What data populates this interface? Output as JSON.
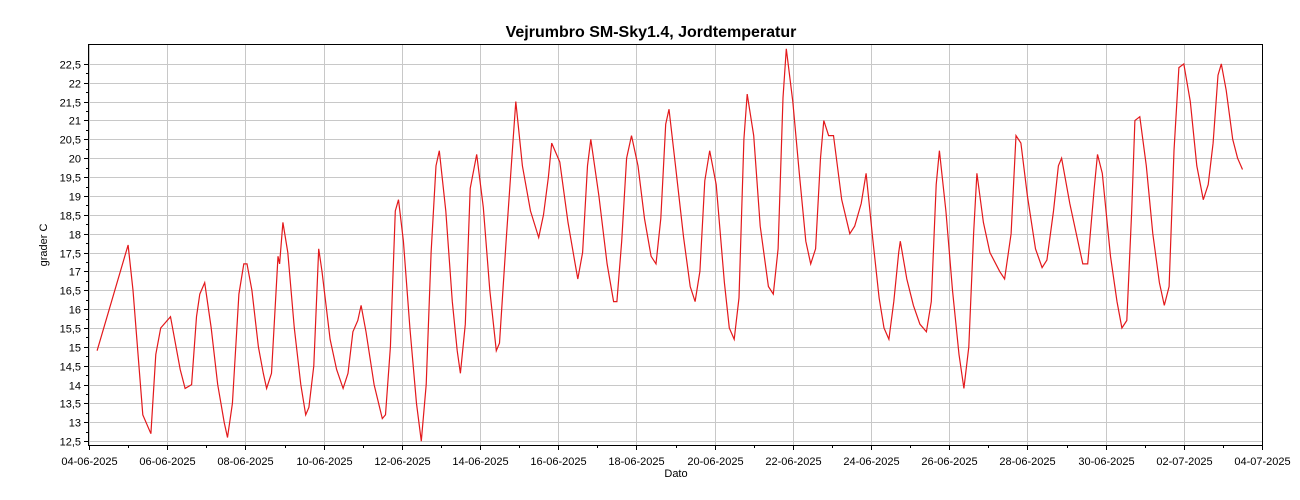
{
  "chart_data": {
    "type": "line",
    "title": "Vejrumbro SM-Sky1.4, Jordtemperatur",
    "xlabel": "Dato",
    "ylabel": "grader C",
    "xlim": [
      "04-06-2025",
      "04-07-2025"
    ],
    "ylim": [
      12.4,
      23.0
    ],
    "x_ticks": [
      "04-06-2025",
      "06-06-2025",
      "08-06-2025",
      "10-06-2025",
      "12-06-2025",
      "14-06-2025",
      "16-06-2025",
      "18-06-2025",
      "20-06-2025",
      "22-06-2025",
      "24-06-2025",
      "26-06-2025",
      "28-06-2025",
      "30-06-2025",
      "02-07-2025",
      "04-07-2025"
    ],
    "y_ticks": [
      "12,5",
      "13",
      "13,5",
      "14",
      "14,5",
      "15",
      "15,5",
      "16",
      "16,5",
      "17",
      "17,5",
      "18",
      "18,5",
      "19",
      "19,5",
      "20",
      "20,5",
      "21",
      "21,5",
      "22",
      "22,5"
    ],
    "grid": true,
    "series": [
      {
        "color": "#e3191c",
        "points": [
          [
            "04-06-2025 05:00",
            14.9
          ],
          [
            "05-06-2025 00:00",
            17.7
          ],
          [
            "05-06-2025 03:00",
            16.5
          ],
          [
            "05-06-2025 09:00",
            13.2
          ],
          [
            "05-06-2025 14:00",
            12.7
          ],
          [
            "05-06-2025 17:00",
            14.8
          ],
          [
            "05-06-2025 20:00",
            15.5
          ],
          [
            "06-06-2025 02:00",
            15.8
          ],
          [
            "06-06-2025 08:00",
            14.4
          ],
          [
            "06-06-2025 11:00",
            13.9
          ],
          [
            "06-06-2025 15:00",
            14.0
          ],
          [
            "06-06-2025 18:00",
            15.8
          ],
          [
            "06-06-2025 20:00",
            16.4
          ],
          [
            "06-06-2025 23:00",
            16.7
          ],
          [
            "07-06-2025 03:00",
            15.5
          ],
          [
            "07-06-2025 07:00",
            14.0
          ],
          [
            "07-06-2025 11:00",
            13.0
          ],
          [
            "07-06-2025 13:00",
            12.6
          ],
          [
            "07-06-2025 16:00",
            13.5
          ],
          [
            "07-06-2025 20:00",
            16.4
          ],
          [
            "07-06-2025 23:00",
            17.2
          ],
          [
            "08-06-2025 01:00",
            17.2
          ],
          [
            "08-06-2025 04:00",
            16.5
          ],
          [
            "08-06-2025 08:00",
            15.0
          ],
          [
            "08-06-2025 11:00",
            14.3
          ],
          [
            "08-06-2025 13:00",
            13.9
          ],
          [
            "08-06-2025 16:00",
            14.3
          ],
          [
            "08-06-2025 20:00",
            17.4
          ],
          [
            "08-06-2025 21:00",
            17.2
          ],
          [
            "08-06-2025 23:00",
            18.3
          ],
          [
            "09-06-2025 02:00",
            17.5
          ],
          [
            "09-06-2025 06:00",
            15.5
          ],
          [
            "09-06-2025 10:00",
            14.0
          ],
          [
            "09-06-2025 13:00",
            13.2
          ],
          [
            "09-06-2025 15:00",
            13.4
          ],
          [
            "09-06-2025 18:00",
            14.5
          ],
          [
            "09-06-2025 21:00",
            17.6
          ],
          [
            "09-06-2025 23:00",
            17.0
          ],
          [
            "10-06-2025 04:00",
            15.2
          ],
          [
            "10-06-2025 08:00",
            14.4
          ],
          [
            "10-06-2025 12:00",
            13.9
          ],
          [
            "10-06-2025 15:00",
            14.3
          ],
          [
            "10-06-2025 18:00",
            15.4
          ],
          [
            "10-06-2025 21:00",
            15.7
          ],
          [
            "10-06-2025 23:00",
            16.1
          ],
          [
            "11-06-2025 02:00",
            15.4
          ],
          [
            "11-06-2025 07:00",
            14.0
          ],
          [
            "11-06-2025 12:00",
            13.1
          ],
          [
            "11-06-2025 14:00",
            13.2
          ],
          [
            "11-06-2025 17:00",
            15.0
          ],
          [
            "11-06-2025 20:00",
            18.6
          ],
          [
            "11-06-2025 22:00",
            18.9
          ],
          [
            "12-06-2025 01:00",
            17.8
          ],
          [
            "12-06-2025 05:00",
            15.5
          ],
          [
            "12-06-2025 09:00",
            13.5
          ],
          [
            "12-06-2025 12:00",
            12.5
          ],
          [
            "12-06-2025 15:00",
            14.0
          ],
          [
            "12-06-2025 18:00",
            17.5
          ],
          [
            "12-06-2025 21:00",
            19.8
          ],
          [
            "12-06-2025 23:00",
            20.2
          ],
          [
            "13-06-2025 03:00",
            18.6
          ],
          [
            "13-06-2025 07:00",
            16.2
          ],
          [
            "13-06-2025 10:00",
            14.9
          ],
          [
            "13-06-2025 12:00",
            14.3
          ],
          [
            "13-06-2025 15:00",
            15.6
          ],
          [
            "13-06-2025 18:00",
            19.2
          ],
          [
            "13-06-2025 22:00",
            20.1
          ],
          [
            "14-06-2025 02:00",
            18.7
          ],
          [
            "14-06-2025 06:00",
            16.5
          ],
          [
            "14-06-2025 10:00",
            14.9
          ],
          [
            "14-06-2025 12:00",
            15.1
          ],
          [
            "14-06-2025 16:00",
            17.8
          ],
          [
            "14-06-2025 20:00",
            20.3
          ],
          [
            "14-06-2025 22:00",
            21.5
          ],
          [
            "15-06-2025 02:00",
            19.8
          ],
          [
            "15-06-2025 07:00",
            18.6
          ],
          [
            "15-06-2025 12:00",
            17.9
          ],
          [
            "15-06-2025 15:00",
            18.5
          ],
          [
            "15-06-2025 18:00",
            19.5
          ],
          [
            "15-06-2025 20:00",
            20.4
          ],
          [
            "16-06-2025 01:00",
            19.9
          ],
          [
            "16-06-2025 06:00",
            18.3
          ],
          [
            "16-06-2025 10:00",
            17.3
          ],
          [
            "16-06-2025 12:00",
            16.8
          ],
          [
            "16-06-2025 15:00",
            17.5
          ],
          [
            "16-06-2025 18:00",
            19.8
          ],
          [
            "16-06-2025 20:00",
            20.5
          ],
          [
            "17-06-2025 01:00",
            19.0
          ],
          [
            "17-06-2025 06:00",
            17.2
          ],
          [
            "17-06-2025 10:00",
            16.2
          ],
          [
            "17-06-2025 12:00",
            16.2
          ],
          [
            "17-06-2025 15:00",
            17.8
          ],
          [
            "17-06-2025 18:00",
            20.0
          ],
          [
            "17-06-2025 21:00",
            20.6
          ],
          [
            "18-06-2025 01:00",
            19.8
          ],
          [
            "18-06-2025 05:00",
            18.4
          ],
          [
            "18-06-2025 09:00",
            17.4
          ],
          [
            "18-06-2025 12:00",
            17.2
          ],
          [
            "18-06-2025 15:00",
            18.4
          ],
          [
            "18-06-2025 18:00",
            20.9
          ],
          [
            "18-06-2025 20:00",
            21.3
          ],
          [
            "19-06-2025 00:00",
            19.8
          ],
          [
            "19-06-2025 05:00",
            17.9
          ],
          [
            "19-06-2025 09:00",
            16.6
          ],
          [
            "19-06-2025 12:00",
            16.2
          ],
          [
            "19-06-2025 15:00",
            17.0
          ],
          [
            "19-06-2025 18:00",
            19.4
          ],
          [
            "19-06-2025 21:00",
            20.2
          ],
          [
            "20-06-2025 01:00",
            19.3
          ],
          [
            "20-06-2025 06:00",
            16.7
          ],
          [
            "20-06-2025 09:00",
            15.5
          ],
          [
            "20-06-2025 12:00",
            15.2
          ],
          [
            "20-06-2025 15:00",
            16.3
          ],
          [
            "20-06-2025 18:00",
            20.5
          ],
          [
            "20-06-2025 20:00",
            21.7
          ],
          [
            "21-06-2025 00:00",
            20.6
          ],
          [
            "21-06-2025 04:00",
            18.2
          ],
          [
            "21-06-2025 09:00",
            16.6
          ],
          [
            "21-06-2025 12:00",
            16.4
          ],
          [
            "21-06-2025 15:00",
            17.6
          ],
          [
            "21-06-2025 18:00",
            21.6
          ],
          [
            "21-06-2025 20:00",
            22.9
          ],
          [
            "22-06-2025 00:00",
            21.5
          ],
          [
            "22-06-2025 04:00",
            19.6
          ],
          [
            "22-06-2025 08:00",
            17.8
          ],
          [
            "22-06-2025 11:00",
            17.2
          ],
          [
            "22-06-2025 14:00",
            17.6
          ],
          [
            "22-06-2025 17:00",
            20.0
          ],
          [
            "22-06-2025 19:00",
            21.0
          ],
          [
            "22-06-2025 22:00",
            20.6
          ],
          [
            "23-06-2025 01:00",
            20.6
          ],
          [
            "23-06-2025 06:00",
            18.9
          ],
          [
            "23-06-2025 11:00",
            18.0
          ],
          [
            "23-06-2025 14:00",
            18.2
          ],
          [
            "23-06-2025 18:00",
            18.8
          ],
          [
            "23-06-2025 21:00",
            19.6
          ],
          [
            "24-06-2025 01:00",
            17.9
          ],
          [
            "24-06-2025 05:00",
            16.3
          ],
          [
            "24-06-2025 08:00",
            15.5
          ],
          [
            "24-06-2025 11:00",
            15.2
          ],
          [
            "24-06-2025 14:00",
            16.2
          ],
          [
            "24-06-2025 17:00",
            17.5
          ],
          [
            "24-06-2025 18:00",
            17.8
          ],
          [
            "24-06-2025 22:00",
            16.8
          ],
          [
            "25-06-2025 02:00",
            16.1
          ],
          [
            "25-06-2025 06:00",
            15.6
          ],
          [
            "25-06-2025 10:00",
            15.4
          ],
          [
            "25-06-2025 13:00",
            16.2
          ],
          [
            "25-06-2025 16:00",
            19.3
          ],
          [
            "25-06-2025 18:00",
            20.2
          ],
          [
            "25-06-2025 22:00",
            18.6
          ],
          [
            "26-06-2025 02:00",
            16.5
          ],
          [
            "26-06-2025 06:00",
            14.8
          ],
          [
            "26-06-2025 09:00",
            13.9
          ],
          [
            "26-06-2025 12:00",
            15.0
          ],
          [
            "26-06-2025 15:00",
            18.0
          ],
          [
            "26-06-2025 17:00",
            19.6
          ],
          [
            "26-06-2025 21:00",
            18.3
          ],
          [
            "27-06-2025 01:00",
            17.5
          ],
          [
            "27-06-2025 07:00",
            17.0
          ],
          [
            "27-06-2025 10:00",
            16.8
          ],
          [
            "27-06-2025 14:00",
            18.0
          ],
          [
            "27-06-2025 17:00",
            20.6
          ],
          [
            "27-06-2025 20:00",
            20.4
          ],
          [
            "28-06-2025 00:00",
            19.0
          ],
          [
            "28-06-2025 05:00",
            17.6
          ],
          [
            "28-06-2025 09:00",
            17.1
          ],
          [
            "28-06-2025 12:00",
            17.3
          ],
          [
            "28-06-2025 16:00",
            18.6
          ],
          [
            "28-06-2025 19:00",
            19.8
          ],
          [
            "28-06-2025 21:00",
            20.0
          ],
          [
            "29-06-2025 02:00",
            18.8
          ],
          [
            "29-06-2025 07:00",
            17.8
          ],
          [
            "29-06-2025 10:00",
            17.2
          ],
          [
            "29-06-2025 13:00",
            17.2
          ],
          [
            "29-06-2025 17:00",
            19.2
          ],
          [
            "29-06-2025 19:00",
            20.1
          ],
          [
            "29-06-2025 22:00",
            19.6
          ],
          [
            "30-06-2025 03:00",
            17.4
          ],
          [
            "30-06-2025 07:00",
            16.2
          ],
          [
            "30-06-2025 10:00",
            15.5
          ],
          [
            "30-06-2025 13:00",
            15.7
          ],
          [
            "30-06-2025 16:00",
            18.6
          ],
          [
            "30-06-2025 18:00",
            21.0
          ],
          [
            "30-06-2025 21:00",
            21.1
          ],
          [
            "01-07-2025 01:00",
            19.8
          ],
          [
            "01-07-2025 05:00",
            18.0
          ],
          [
            "01-07-2025 09:00",
            16.7
          ],
          [
            "01-07-2025 12:00",
            16.1
          ],
          [
            "01-07-2025 15:00",
            16.6
          ],
          [
            "01-07-2025 18:00",
            20.2
          ],
          [
            "01-07-2025 21:00",
            22.4
          ],
          [
            "02-07-2025 00:00",
            22.5
          ],
          [
            "02-07-2025 04:00",
            21.5
          ],
          [
            "02-07-2025 08:00",
            19.8
          ],
          [
            "02-07-2025 12:00",
            18.9
          ],
          [
            "02-07-2025 15:00",
            19.3
          ],
          [
            "02-07-2025 18:00",
            20.4
          ],
          [
            "02-07-2025 21:00",
            22.2
          ],
          [
            "02-07-2025 23:00",
            22.5
          ],
          [
            "03-07-2025 02:00",
            21.8
          ],
          [
            "03-07-2025 06:00",
            20.5
          ],
          [
            "03-07-2025 09:00",
            20.0
          ],
          [
            "03-07-2025 12:00",
            19.7
          ]
        ]
      }
    ]
  }
}
